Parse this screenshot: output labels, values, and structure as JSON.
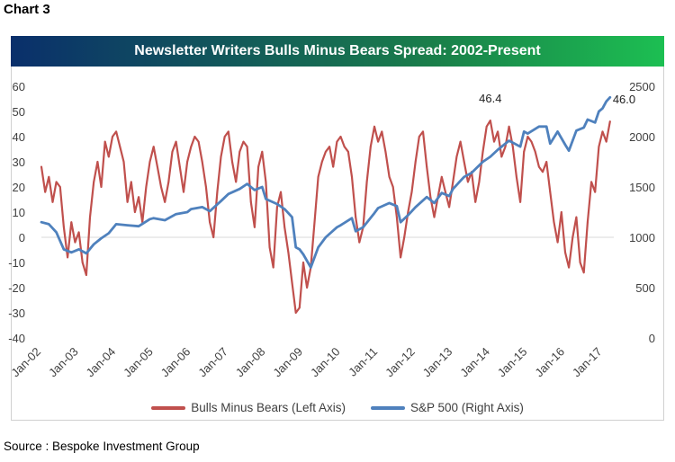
{
  "header": {
    "chart_label": "Chart 3",
    "source": "Source : Bespoke Investment Group"
  },
  "colors": {
    "bulls": "#c0504d",
    "sp500": "#4f81bd",
    "banner_left": "#0a2f6b",
    "banner_mid": "#1a7f4a",
    "banner_right": "#1cbf52"
  },
  "chart_data": {
    "type": "line",
    "title": "Newsletter Writers Bulls Minus Bears Spread: 2002-Present",
    "x_categories": [
      "Jan-02",
      "Jan-03",
      "Jan-04",
      "Jan-05",
      "Jan-06",
      "Jan-07",
      "Jan-08",
      "Jan-09",
      "Jan-10",
      "Jan-11",
      "Jan-12",
      "Jan-13",
      "Jan-14",
      "Jan-15",
      "Jan-16",
      "Jan-17"
    ],
    "x_range": [
      2002.0,
      2017.3
    ],
    "left_axis": {
      "range": [
        -40,
        60
      ],
      "ticks": [
        "-40",
        "-30",
        "-20",
        "-10",
        "0",
        "10",
        "20",
        "30",
        "40",
        "50",
        "60"
      ]
    },
    "right_axis": {
      "range": [
        0,
        2500
      ],
      "ticks": [
        "0",
        "500",
        "1000",
        "1500",
        "2000",
        "2500"
      ]
    },
    "series": [
      {
        "name": "Bulls Minus Bears (Left Axis)",
        "axis": "left",
        "points": [
          [
            2002.0,
            28
          ],
          [
            2002.1,
            18
          ],
          [
            2002.2,
            24
          ],
          [
            2002.3,
            14
          ],
          [
            2002.4,
            22
          ],
          [
            2002.5,
            20
          ],
          [
            2002.6,
            4
          ],
          [
            2002.7,
            -8
          ],
          [
            2002.8,
            6
          ],
          [
            2002.9,
            -2
          ],
          [
            2003.0,
            2
          ],
          [
            2003.1,
            -10
          ],
          [
            2003.2,
            -15
          ],
          [
            2003.3,
            8
          ],
          [
            2003.4,
            22
          ],
          [
            2003.5,
            30
          ],
          [
            2003.6,
            20
          ],
          [
            2003.7,
            38
          ],
          [
            2003.8,
            32
          ],
          [
            2003.9,
            40
          ],
          [
            2004.0,
            42
          ],
          [
            2004.1,
            36
          ],
          [
            2004.2,
            30
          ],
          [
            2004.3,
            14
          ],
          [
            2004.4,
            22
          ],
          [
            2004.5,
            10
          ],
          [
            2004.6,
            16
          ],
          [
            2004.7,
            6
          ],
          [
            2004.8,
            20
          ],
          [
            2004.9,
            30
          ],
          [
            2005.0,
            36
          ],
          [
            2005.1,
            28
          ],
          [
            2005.2,
            20
          ],
          [
            2005.3,
            14
          ],
          [
            2005.4,
            22
          ],
          [
            2005.5,
            34
          ],
          [
            2005.6,
            38
          ],
          [
            2005.7,
            28
          ],
          [
            2005.8,
            18
          ],
          [
            2005.9,
            30
          ],
          [
            2006.0,
            36
          ],
          [
            2006.1,
            40
          ],
          [
            2006.2,
            38
          ],
          [
            2006.3,
            30
          ],
          [
            2006.4,
            20
          ],
          [
            2006.5,
            6
          ],
          [
            2006.6,
            0
          ],
          [
            2006.7,
            18
          ],
          [
            2006.8,
            32
          ],
          [
            2006.9,
            40
          ],
          [
            2007.0,
            42
          ],
          [
            2007.1,
            30
          ],
          [
            2007.2,
            22
          ],
          [
            2007.3,
            34
          ],
          [
            2007.4,
            38
          ],
          [
            2007.5,
            36
          ],
          [
            2007.6,
            14
          ],
          [
            2007.7,
            4
          ],
          [
            2007.8,
            28
          ],
          [
            2007.9,
            34
          ],
          [
            2008.0,
            22
          ],
          [
            2008.1,
            -4
          ],
          [
            2008.2,
            -12
          ],
          [
            2008.3,
            12
          ],
          [
            2008.4,
            18
          ],
          [
            2008.5,
            4
          ],
          [
            2008.6,
            -6
          ],
          [
            2008.7,
            -18
          ],
          [
            2008.8,
            -30
          ],
          [
            2008.9,
            -28
          ],
          [
            2009.0,
            -10
          ],
          [
            2009.1,
            -20
          ],
          [
            2009.2,
            -12
          ],
          [
            2009.3,
            6
          ],
          [
            2009.4,
            24
          ],
          [
            2009.5,
            30
          ],
          [
            2009.6,
            34
          ],
          [
            2009.7,
            36
          ],
          [
            2009.8,
            28
          ],
          [
            2009.9,
            38
          ],
          [
            2010.0,
            40
          ],
          [
            2010.1,
            36
          ],
          [
            2010.2,
            34
          ],
          [
            2010.3,
            24
          ],
          [
            2010.4,
            8
          ],
          [
            2010.5,
            -2
          ],
          [
            2010.6,
            4
          ],
          [
            2010.7,
            22
          ],
          [
            2010.8,
            36
          ],
          [
            2010.9,
            44
          ],
          [
            2011.0,
            38
          ],
          [
            2011.1,
            42
          ],
          [
            2011.2,
            34
          ],
          [
            2011.3,
            24
          ],
          [
            2011.4,
            20
          ],
          [
            2011.5,
            8
          ],
          [
            2011.6,
            -8
          ],
          [
            2011.7,
            0
          ],
          [
            2011.8,
            10
          ],
          [
            2011.9,
            18
          ],
          [
            2012.0,
            30
          ],
          [
            2012.1,
            40
          ],
          [
            2012.2,
            42
          ],
          [
            2012.3,
            28
          ],
          [
            2012.4,
            16
          ],
          [
            2012.5,
            8
          ],
          [
            2012.6,
            16
          ],
          [
            2012.7,
            24
          ],
          [
            2012.8,
            18
          ],
          [
            2012.9,
            12
          ],
          [
            2013.0,
            22
          ],
          [
            2013.1,
            32
          ],
          [
            2013.2,
            38
          ],
          [
            2013.3,
            30
          ],
          [
            2013.4,
            22
          ],
          [
            2013.5,
            26
          ],
          [
            2013.6,
            14
          ],
          [
            2013.7,
            22
          ],
          [
            2013.8,
            34
          ],
          [
            2013.9,
            44
          ],
          [
            2014.0,
            46.4
          ],
          [
            2014.1,
            38
          ],
          [
            2014.2,
            42
          ],
          [
            2014.3,
            32
          ],
          [
            2014.4,
            36
          ],
          [
            2014.5,
            44
          ],
          [
            2014.6,
            36
          ],
          [
            2014.7,
            24
          ],
          [
            2014.8,
            14
          ],
          [
            2014.9,
            34
          ],
          [
            2015.0,
            40
          ],
          [
            2015.1,
            38
          ],
          [
            2015.2,
            34
          ],
          [
            2015.3,
            28
          ],
          [
            2015.4,
            26
          ],
          [
            2015.5,
            30
          ],
          [
            2015.6,
            18
          ],
          [
            2015.7,
            6
          ],
          [
            2015.8,
            -2
          ],
          [
            2015.9,
            10
          ],
          [
            2016.0,
            -6
          ],
          [
            2016.1,
            -12
          ],
          [
            2016.2,
            0
          ],
          [
            2016.3,
            8
          ],
          [
            2016.4,
            -10
          ],
          [
            2016.5,
            -14
          ],
          [
            2016.6,
            6
          ],
          [
            2016.7,
            22
          ],
          [
            2016.8,
            18
          ],
          [
            2016.9,
            36
          ],
          [
            2017.0,
            42
          ],
          [
            2017.1,
            38
          ],
          [
            2017.2,
            46
          ]
        ]
      },
      {
        "name": "S&P 500 (Right Axis)",
        "axis": "right",
        "points": [
          [
            2002.0,
            1150
          ],
          [
            2002.2,
            1130
          ],
          [
            2002.4,
            1050
          ],
          [
            2002.6,
            880
          ],
          [
            2002.8,
            850
          ],
          [
            2003.0,
            880
          ],
          [
            2003.2,
            840
          ],
          [
            2003.4,
            930
          ],
          [
            2003.6,
            990
          ],
          [
            2003.8,
            1040
          ],
          [
            2004.0,
            1130
          ],
          [
            2004.3,
            1120
          ],
          [
            2004.6,
            1110
          ],
          [
            2004.9,
            1180
          ],
          [
            2005.0,
            1190
          ],
          [
            2005.3,
            1170
          ],
          [
            2005.6,
            1230
          ],
          [
            2005.9,
            1250
          ],
          [
            2006.0,
            1280
          ],
          [
            2006.3,
            1300
          ],
          [
            2006.5,
            1260
          ],
          [
            2006.8,
            1360
          ],
          [
            2007.0,
            1430
          ],
          [
            2007.3,
            1480
          ],
          [
            2007.5,
            1530
          ],
          [
            2007.7,
            1470
          ],
          [
            2007.9,
            1500
          ],
          [
            2008.0,
            1380
          ],
          [
            2008.3,
            1330
          ],
          [
            2008.5,
            1280
          ],
          [
            2008.7,
            1200
          ],
          [
            2008.8,
            900
          ],
          [
            2008.9,
            880
          ],
          [
            2009.0,
            830
          ],
          [
            2009.2,
            700
          ],
          [
            2009.4,
            900
          ],
          [
            2009.6,
            1000
          ],
          [
            2009.9,
            1100
          ],
          [
            2010.0,
            1120
          ],
          [
            2010.3,
            1190
          ],
          [
            2010.4,
            1060
          ],
          [
            2010.6,
            1100
          ],
          [
            2010.9,
            1240
          ],
          [
            2011.0,
            1290
          ],
          [
            2011.3,
            1340
          ],
          [
            2011.5,
            1310
          ],
          [
            2011.6,
            1150
          ],
          [
            2011.8,
            1220
          ],
          [
            2012.0,
            1300
          ],
          [
            2012.3,
            1400
          ],
          [
            2012.5,
            1340
          ],
          [
            2012.7,
            1440
          ],
          [
            2012.9,
            1410
          ],
          [
            2013.0,
            1480
          ],
          [
            2013.3,
            1600
          ],
          [
            2013.5,
            1640
          ],
          [
            2013.8,
            1750
          ],
          [
            2014.0,
            1800
          ],
          [
            2014.2,
            1870
          ],
          [
            2014.5,
            1960
          ],
          [
            2014.8,
            1900
          ],
          [
            2014.9,
            2050
          ],
          [
            2015.0,
            2030
          ],
          [
            2015.3,
            2100
          ],
          [
            2015.5,
            2100
          ],
          [
            2015.6,
            1930
          ],
          [
            2015.8,
            2050
          ],
          [
            2016.0,
            1920
          ],
          [
            2016.1,
            1860
          ],
          [
            2016.3,
            2060
          ],
          [
            2016.5,
            2090
          ],
          [
            2016.6,
            2170
          ],
          [
            2016.8,
            2140
          ],
          [
            2016.9,
            2250
          ],
          [
            2017.0,
            2280
          ],
          [
            2017.1,
            2350
          ],
          [
            2017.2,
            2390
          ]
        ]
      }
    ],
    "annotations": [
      {
        "text": "46.4",
        "x": 2014.0,
        "y": 46.4,
        "axis": "left",
        "anchor": "above"
      },
      {
        "text": "46.0",
        "x": 2017.2,
        "y": 46.0,
        "axis": "left",
        "anchor": "right"
      }
    ],
    "legend": [
      "Bulls Minus Bears (Left Axis)",
      "S&P 500 (Right Axis)"
    ],
    "legend_position": "bottom-center"
  }
}
